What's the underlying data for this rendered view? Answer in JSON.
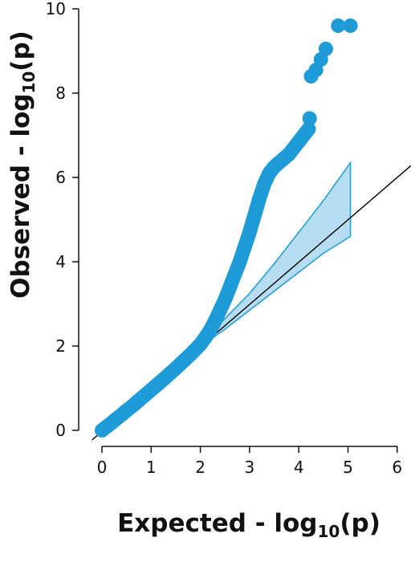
{
  "chart_data": {
    "type": "scatter",
    "title": "",
    "xlabel": {
      "prefix": "Expected  - log",
      "sub": "10",
      "suffix": "(p)"
    },
    "ylabel": {
      "prefix": "Observed  - log",
      "sub": "10",
      "suffix": "(p)"
    },
    "xlim": [
      0,
      6
    ],
    "ylim": [
      0,
      10
    ],
    "x_ticks": [
      "0",
      "1",
      "2",
      "3",
      "4",
      "5",
      "6"
    ],
    "y_ticks": [
      "0",
      "2",
      "4",
      "6",
      "8",
      "10"
    ],
    "grid": false,
    "legend": "none",
    "reference_line": {
      "slope": 1,
      "intercept": 0
    },
    "confidence_band": {
      "x": [
        2.0,
        2.5,
        3.0,
        3.5,
        4.0,
        4.5,
        5.05
      ],
      "lower": [
        1.98,
        2.4,
        2.85,
        3.3,
        3.75,
        4.2,
        4.6
      ],
      "upper": [
        2.02,
        2.65,
        3.25,
        3.95,
        4.7,
        5.45,
        6.35
      ]
    },
    "series": [
      {
        "points": [
          [
            0.0,
            0.0
          ],
          [
            0.1,
            0.09
          ],
          [
            0.2,
            0.18
          ],
          [
            0.3,
            0.28
          ],
          [
            0.4,
            0.37
          ],
          [
            0.5,
            0.47
          ],
          [
            0.6,
            0.56
          ],
          [
            0.7,
            0.66
          ],
          [
            0.8,
            0.76
          ],
          [
            0.9,
            0.86
          ],
          [
            1.0,
            0.96
          ],
          [
            1.1,
            1.06
          ],
          [
            1.2,
            1.16
          ],
          [
            1.3,
            1.26
          ],
          [
            1.4,
            1.37
          ],
          [
            1.5,
            1.47
          ],
          [
            1.6,
            1.58
          ],
          [
            1.7,
            1.69
          ],
          [
            1.8,
            1.8
          ],
          [
            1.9,
            1.92
          ],
          [
            2.0,
            2.04
          ],
          [
            2.1,
            2.2
          ],
          [
            2.2,
            2.38
          ],
          [
            2.3,
            2.6
          ],
          [
            2.4,
            2.85
          ],
          [
            2.5,
            3.1
          ],
          [
            2.6,
            3.4
          ],
          [
            2.7,
            3.7
          ],
          [
            2.8,
            4.0
          ],
          [
            2.9,
            4.35
          ],
          [
            3.0,
            4.7
          ],
          [
            3.1,
            5.1
          ],
          [
            3.2,
            5.5
          ],
          [
            3.3,
            5.85
          ],
          [
            3.4,
            6.1
          ],
          [
            3.5,
            6.25
          ],
          [
            3.6,
            6.35
          ],
          [
            3.7,
            6.45
          ],
          [
            3.8,
            6.55
          ],
          [
            3.9,
            6.7
          ],
          [
            4.0,
            6.85
          ],
          [
            4.1,
            7.0
          ],
          [
            4.2,
            7.15
          ],
          [
            4.22,
            7.4
          ],
          [
            4.25,
            8.4
          ],
          [
            4.35,
            8.55
          ],
          [
            4.45,
            8.8
          ],
          [
            4.55,
            9.05
          ],
          [
            4.8,
            9.6
          ],
          [
            5.05,
            9.6
          ]
        ]
      }
    ],
    "colors": {
      "points": "#1f9bd7",
      "band_fill": "#a9d7f0",
      "band_stroke": "#1f9bd7",
      "line": "#000000",
      "axis": "#111111"
    }
  }
}
